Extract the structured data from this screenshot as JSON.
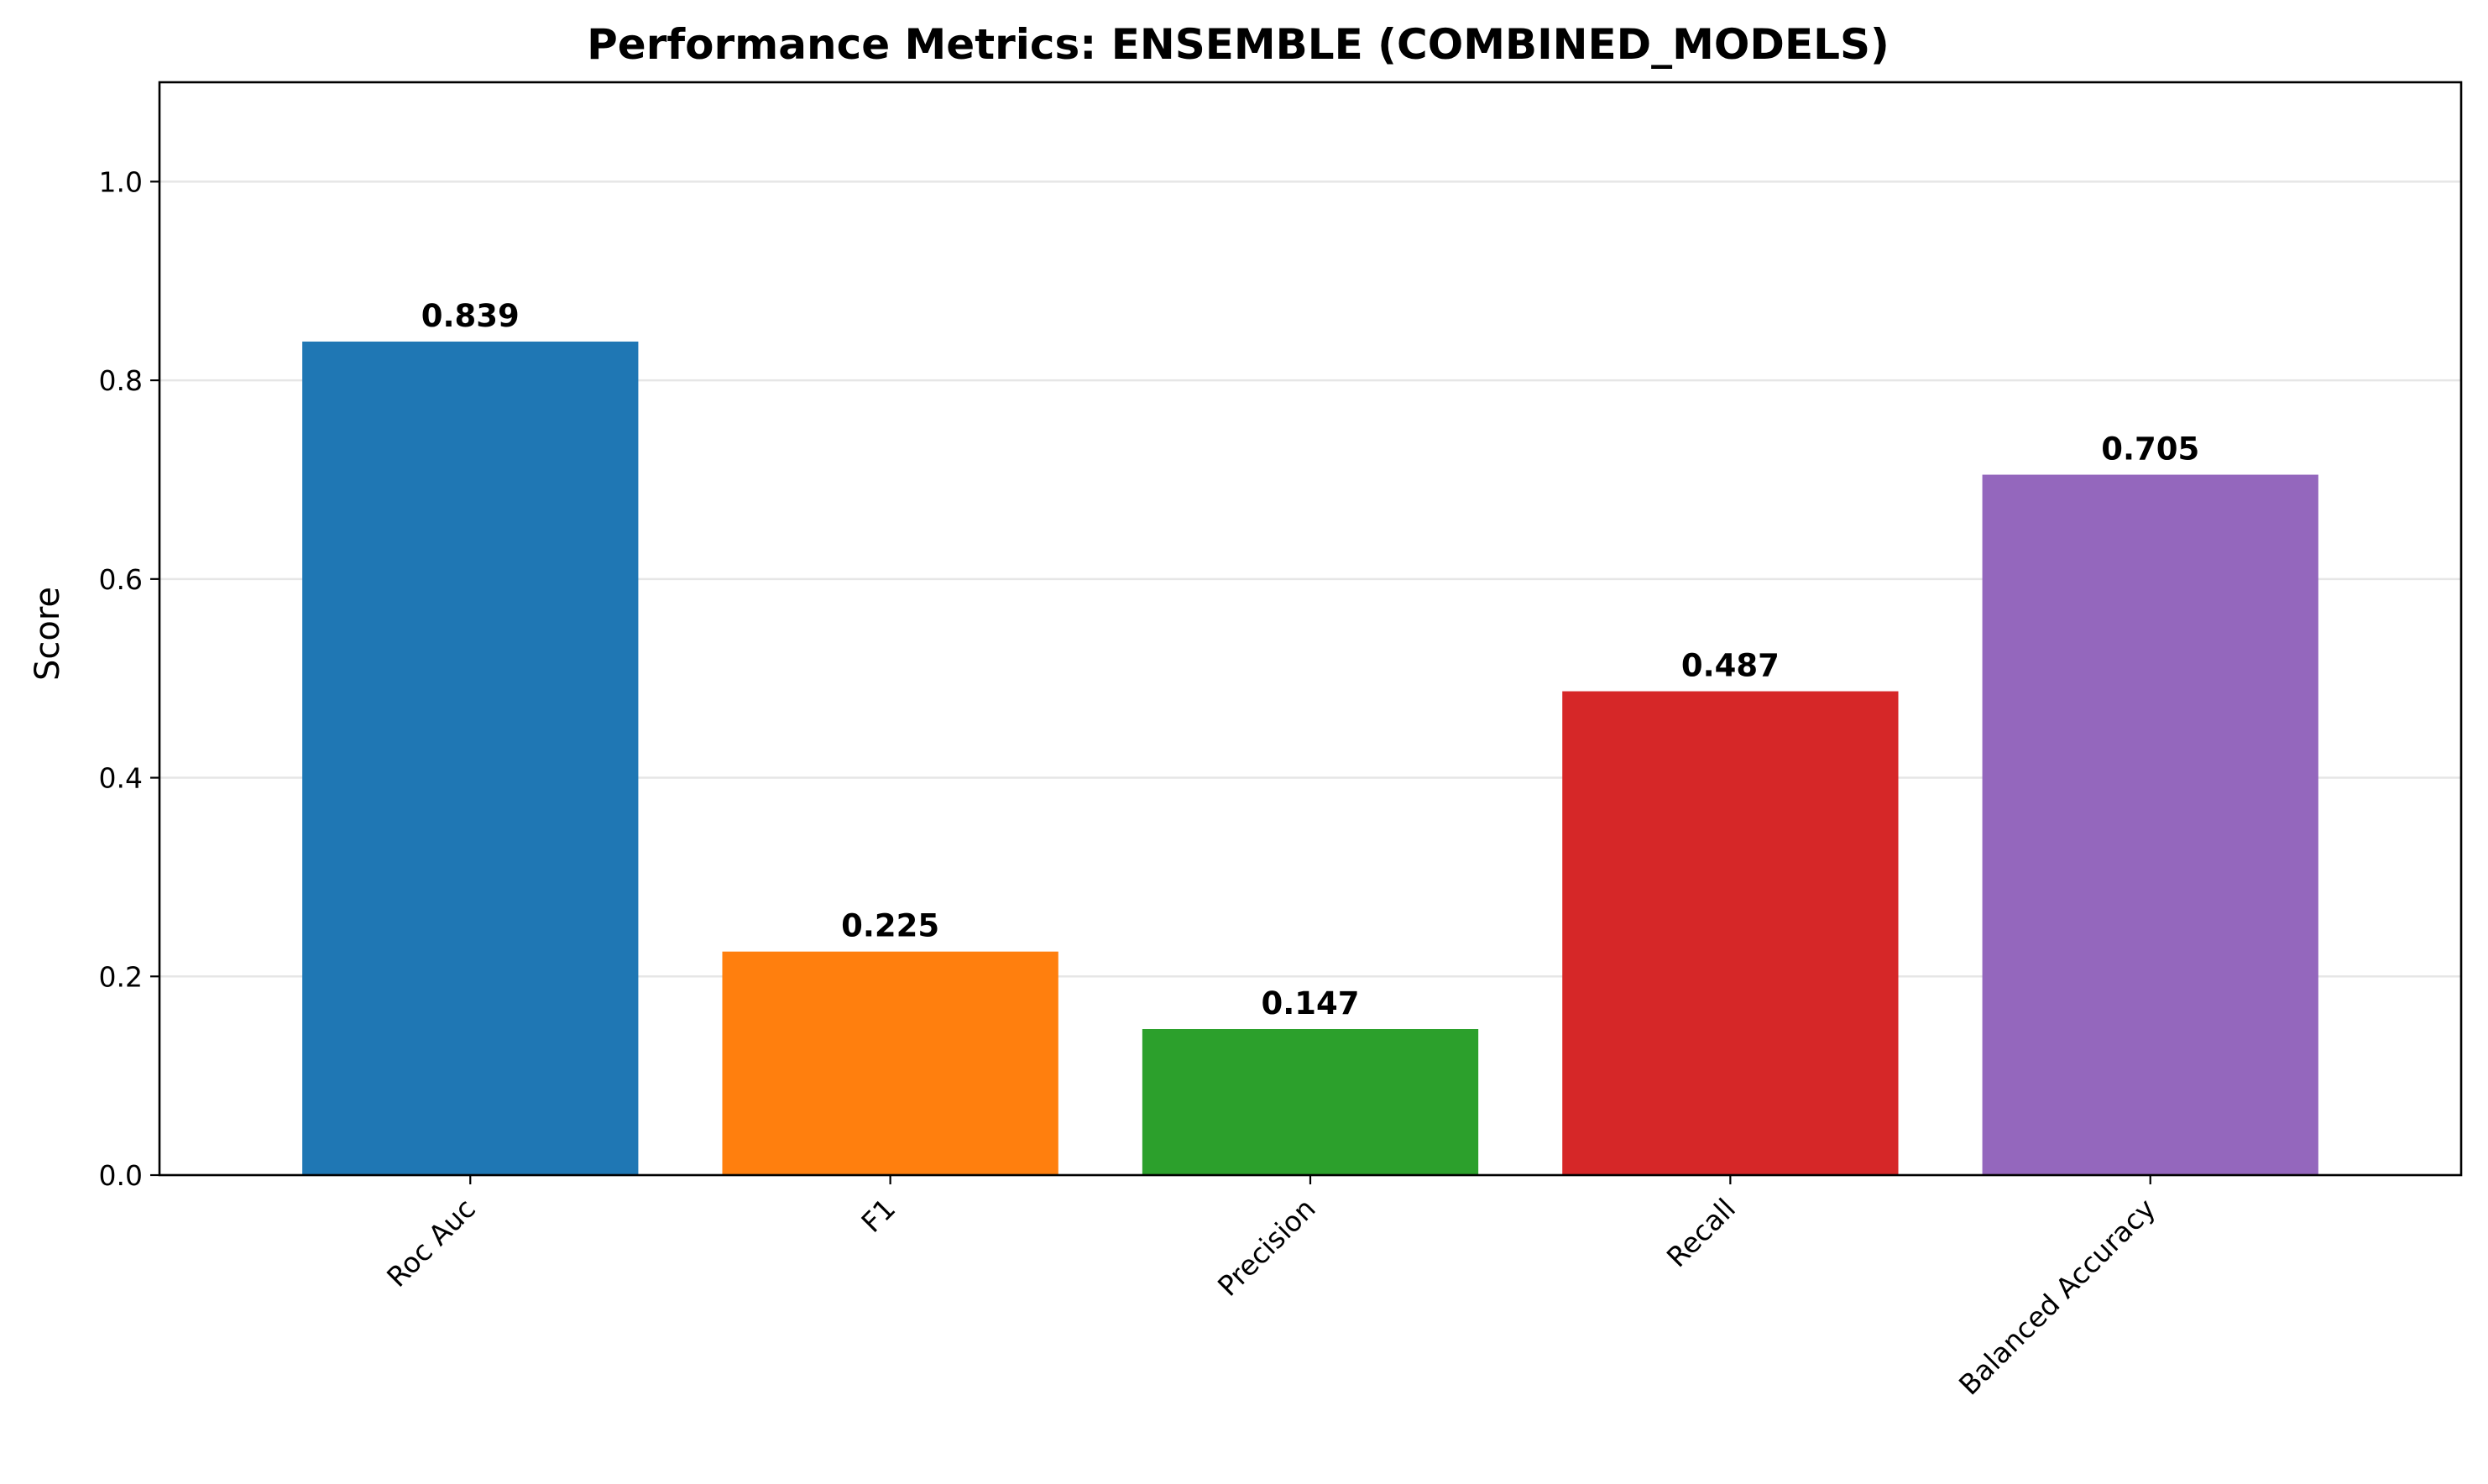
{
  "chart_data": {
    "type": "bar",
    "title": "Performance Metrics: ENSEMBLE (COMBINED_MODELS)",
    "xlabel": "",
    "ylabel": "Score",
    "categories": [
      "Roc Auc",
      "F1",
      "Precision",
      "Recall",
      "Balanced Accuracy"
    ],
    "values": [
      0.839,
      0.225,
      0.147,
      0.487,
      0.705
    ],
    "value_labels": [
      "0.839",
      "0.225",
      "0.147",
      "0.487",
      "0.705"
    ],
    "colors": [
      "#1f77b4",
      "#ff7f0e",
      "#2ca02c",
      "#d62728",
      "#9467bd"
    ],
    "ylim": [
      0,
      1.1
    ],
    "yticks": [
      0.0,
      0.2,
      0.4,
      0.6,
      0.8,
      1.0
    ],
    "ytick_labels": [
      "0.0",
      "0.2",
      "0.4",
      "0.6",
      "0.8",
      "1.0"
    ],
    "grid": "y",
    "xtick_rotation": 45
  }
}
